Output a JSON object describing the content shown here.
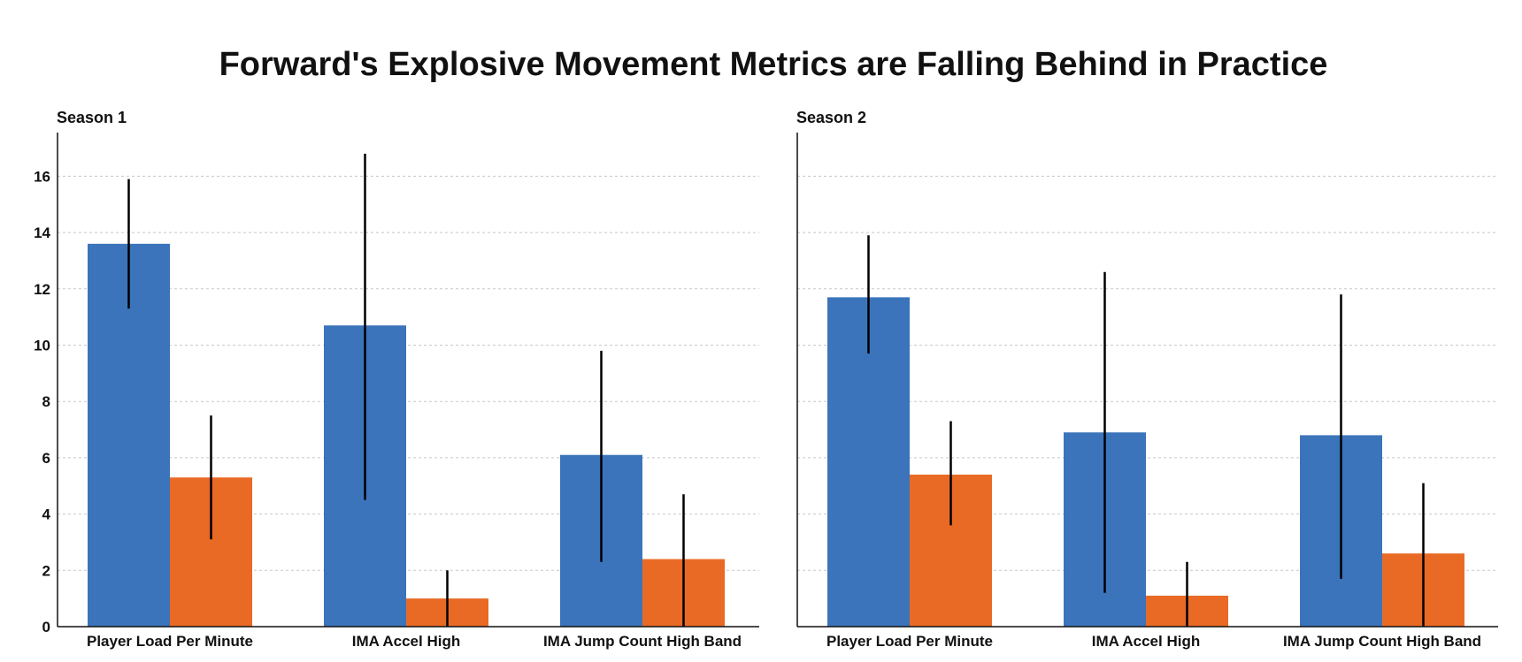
{
  "chart_data": {
    "title": "Forward's Explosive Movement Metrics are Falling Behind in Practice",
    "type": "bar",
    "ylim": [
      0,
      17.5
    ],
    "yticks": [
      0,
      2,
      4,
      6,
      8,
      10,
      12,
      14,
      16
    ],
    "grid": true,
    "colors": [
      "#3b74bb",
      "#e96a25"
    ],
    "categories": [
      "Player Load Per Minute",
      "IMA Accel High",
      "IMA Jump Count High Band"
    ],
    "panels": [
      {
        "title": "Season 1",
        "series": [
          {
            "values": [
              13.6,
              10.7,
              6.1
            ],
            "err_low": [
              11.3,
              4.5,
              2.3
            ],
            "err_high": [
              15.9,
              16.8,
              9.8
            ]
          },
          {
            "values": [
              5.3,
              1.0,
              2.4
            ],
            "err_low": [
              3.1,
              0.0,
              0.0
            ],
            "err_high": [
              7.5,
              2.0,
              4.7
            ]
          }
        ]
      },
      {
        "title": "Season 2",
        "series": [
          {
            "values": [
              11.7,
              6.9,
              6.8
            ],
            "err_low": [
              9.7,
              1.2,
              1.7
            ],
            "err_high": [
              13.9,
              12.6,
              11.8
            ]
          },
          {
            "values": [
              5.4,
              1.1,
              2.6
            ],
            "err_low": [
              3.6,
              0.0,
              0.0
            ],
            "err_high": [
              7.3,
              2.3,
              5.1
            ]
          }
        ]
      }
    ]
  }
}
